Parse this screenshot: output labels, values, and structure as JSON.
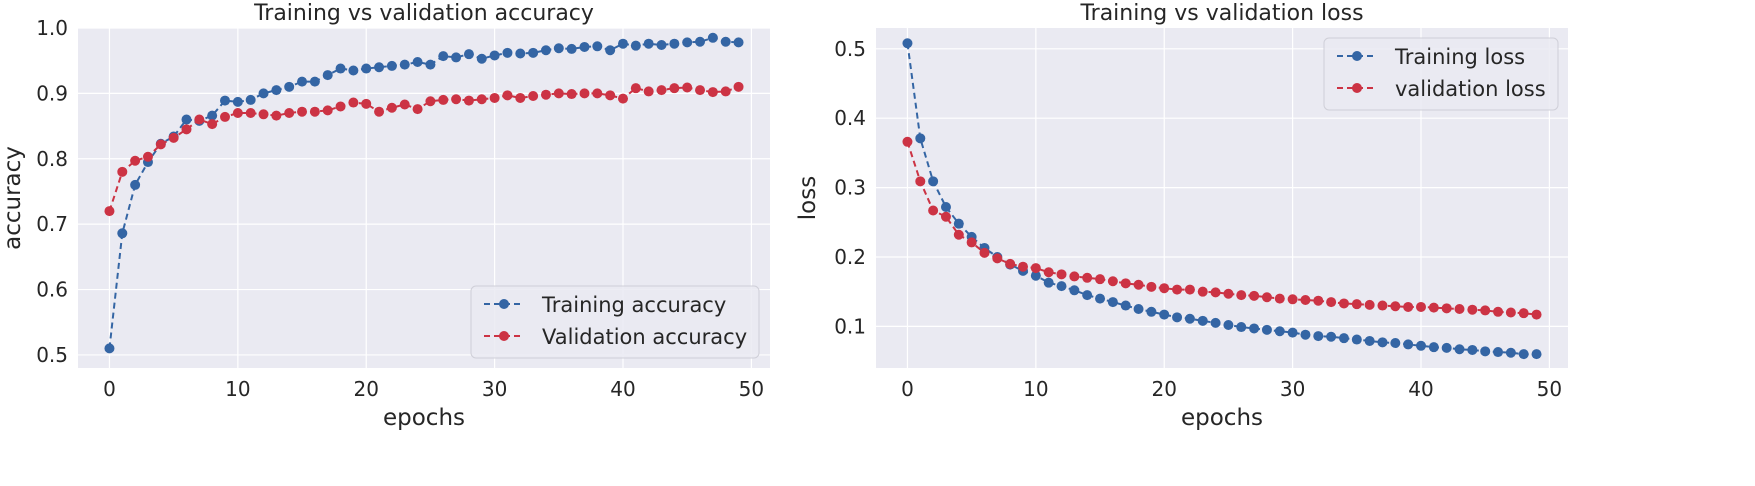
{
  "colors": {
    "training": "#3465a4",
    "validation": "#cc3344",
    "plot_bg": "#eaeaf2",
    "grid": "#ffffff"
  },
  "chart_data": [
    {
      "type": "line",
      "title": "Training vs validation accuracy",
      "xlabel": "epochs",
      "ylabel": "accuracy",
      "xlim": [
        -2.45,
        51.45
      ],
      "ylim": [
        0.48,
        1.0
      ],
      "xticks": [
        0,
        10,
        20,
        30,
        40,
        50
      ],
      "yticks": [
        0.5,
        0.6,
        0.7,
        0.8,
        0.9,
        1.0
      ],
      "ytick_labels": [
        "0.5",
        "0.6",
        "0.7",
        "0.8",
        "0.9",
        "1.0"
      ],
      "legend_position": "lower-right",
      "grid": true,
      "x": [
        0,
        1,
        2,
        3,
        4,
        5,
        6,
        7,
        8,
        9,
        10,
        11,
        12,
        13,
        14,
        15,
        16,
        17,
        18,
        19,
        20,
        21,
        22,
        23,
        24,
        25,
        26,
        27,
        28,
        29,
        30,
        31,
        32,
        33,
        34,
        35,
        36,
        37,
        38,
        39,
        40,
        41,
        42,
        43,
        44,
        45,
        46,
        47,
        48,
        49
      ],
      "series": [
        {
          "name": "Training accuracy",
          "color_key": "training",
          "values": [
            0.51,
            0.686,
            0.76,
            0.795,
            0.823,
            0.834,
            0.86,
            0.858,
            0.866,
            0.889,
            0.887,
            0.89,
            0.9,
            0.905,
            0.91,
            0.918,
            0.918,
            0.928,
            0.938,
            0.935,
            0.938,
            0.94,
            0.942,
            0.944,
            0.948,
            0.944,
            0.957,
            0.955,
            0.96,
            0.953,
            0.958,
            0.962,
            0.961,
            0.962,
            0.966,
            0.969,
            0.968,
            0.971,
            0.972,
            0.966,
            0.976,
            0.973,
            0.976,
            0.974,
            0.976,
            0.978,
            0.979,
            0.985,
            0.979,
            0.978
          ]
        },
        {
          "name": "Validation accuracy",
          "color_key": "validation",
          "values": [
            0.72,
            0.78,
            0.797,
            0.803,
            0.822,
            0.832,
            0.845,
            0.86,
            0.853,
            0.864,
            0.87,
            0.87,
            0.868,
            0.866,
            0.87,
            0.872,
            0.872,
            0.874,
            0.88,
            0.886,
            0.884,
            0.872,
            0.878,
            0.883,
            0.876,
            0.888,
            0.89,
            0.891,
            0.889,
            0.891,
            0.893,
            0.897,
            0.893,
            0.896,
            0.898,
            0.9,
            0.899,
            0.9,
            0.9,
            0.897,
            0.892,
            0.908,
            0.903,
            0.905,
            0.908,
            0.909,
            0.905,
            0.902,
            0.903,
            0.91
          ]
        }
      ]
    },
    {
      "type": "line",
      "title": "Training vs validation loss",
      "xlabel": "epochs",
      "ylabel": "loss",
      "xlim": [
        -2.45,
        51.45
      ],
      "ylim": [
        0.04,
        0.53
      ],
      "xticks": [
        0,
        10,
        20,
        30,
        40,
        50
      ],
      "yticks": [
        0.1,
        0.2,
        0.3,
        0.4,
        0.5
      ],
      "ytick_labels": [
        "0.1",
        "0.2",
        "0.3",
        "0.4",
        "0.5"
      ],
      "legend_position": "upper-right",
      "grid": true,
      "x": [
        0,
        1,
        2,
        3,
        4,
        5,
        6,
        7,
        8,
        9,
        10,
        11,
        12,
        13,
        14,
        15,
        16,
        17,
        18,
        19,
        20,
        21,
        22,
        23,
        24,
        25,
        26,
        27,
        28,
        29,
        30,
        31,
        32,
        33,
        34,
        35,
        36,
        37,
        38,
        39,
        40,
        41,
        42,
        43,
        44,
        45,
        46,
        47,
        48,
        49
      ],
      "series": [
        {
          "name": "Training loss",
          "color_key": "training",
          "values": [
            0.508,
            0.371,
            0.309,
            0.272,
            0.248,
            0.229,
            0.213,
            0.2,
            0.189,
            0.18,
            0.173,
            0.163,
            0.158,
            0.152,
            0.145,
            0.14,
            0.135,
            0.13,
            0.125,
            0.121,
            0.117,
            0.113,
            0.111,
            0.108,
            0.105,
            0.102,
            0.099,
            0.097,
            0.095,
            0.093,
            0.091,
            0.088,
            0.086,
            0.085,
            0.083,
            0.081,
            0.079,
            0.077,
            0.076,
            0.074,
            0.072,
            0.07,
            0.069,
            0.067,
            0.066,
            0.064,
            0.063,
            0.062,
            0.06,
            0.06
          ]
        },
        {
          "name": "validation loss",
          "color_key": "validation",
          "values": [
            0.366,
            0.309,
            0.267,
            0.258,
            0.232,
            0.221,
            0.206,
            0.198,
            0.19,
            0.186,
            0.184,
            0.178,
            0.175,
            0.172,
            0.17,
            0.168,
            0.165,
            0.162,
            0.16,
            0.157,
            0.155,
            0.153,
            0.153,
            0.15,
            0.149,
            0.147,
            0.145,
            0.144,
            0.142,
            0.14,
            0.139,
            0.138,
            0.137,
            0.135,
            0.133,
            0.132,
            0.131,
            0.13,
            0.129,
            0.128,
            0.128,
            0.127,
            0.126,
            0.125,
            0.124,
            0.123,
            0.121,
            0.12,
            0.119,
            0.117
          ]
        }
      ]
    }
  ]
}
